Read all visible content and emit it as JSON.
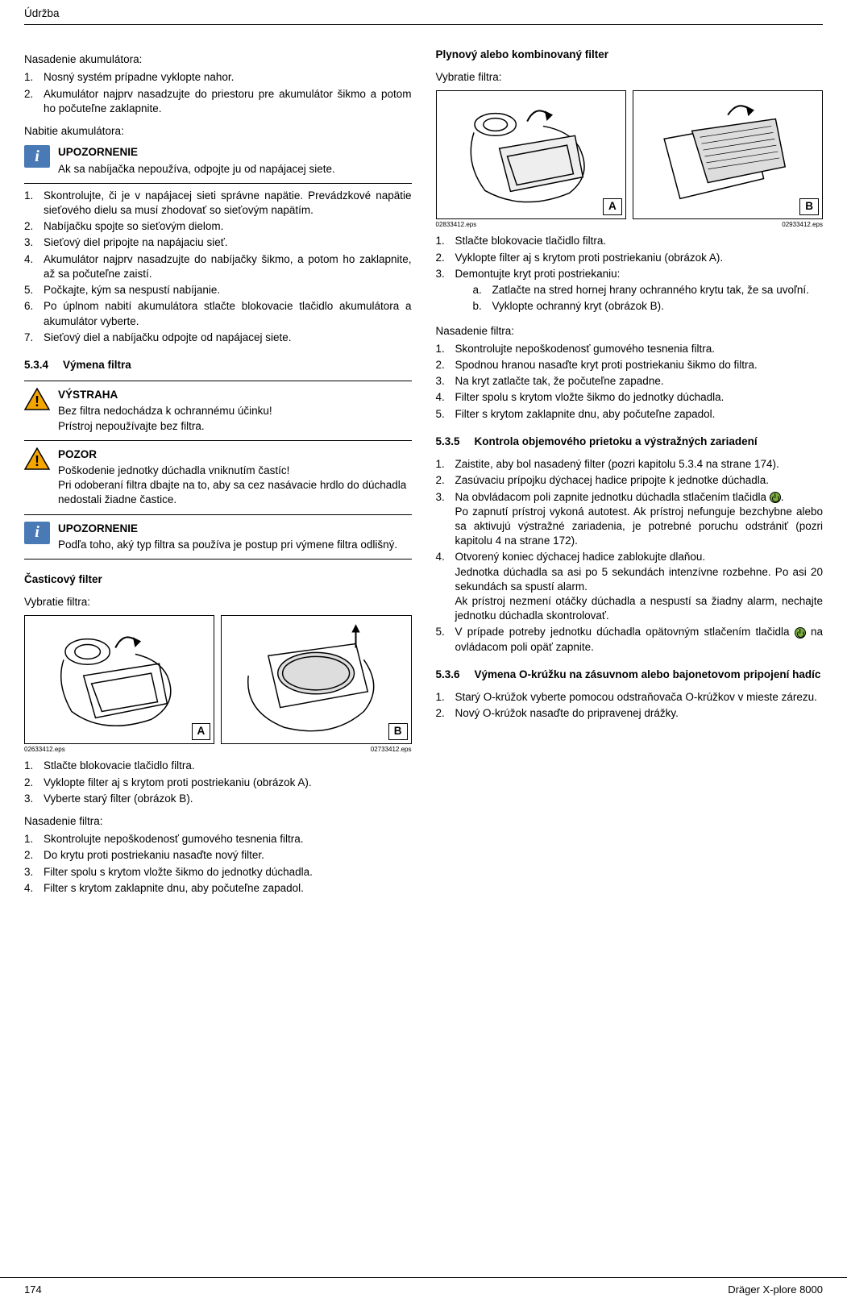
{
  "header": "Údržba",
  "footer": {
    "page": "174",
    "product": "Dräger X-plore 8000"
  },
  "left": {
    "accum_insert_heading": "Nasadenie akumulátora:",
    "accum_insert_items": [
      "Nosný systém prípadne vyklopte nahor.",
      "Akumulátor najprv nasadzujte do priestoru pre akumulátor šikmo a potom ho počuteľne zaklapnite."
    ],
    "accum_charge_heading": "Nabitie akumulátora:",
    "notice1": {
      "title": "UPOZORNENIE",
      "text": "Ak sa nabíjačka nepoužíva, odpojte ju od napájacej siete."
    },
    "accum_charge_items": [
      "Skontrolujte, či je v napájacej sieti správne napätie. Prevádzkové napätie sieťového dielu sa musí zhodovať so sieťovým napätím.",
      "Nabíjačku spojte so sieťovým dielom.",
      "Sieťový diel pripojte na napájaciu sieť.",
      "Akumulátor najprv nasadzujte do nabíjačky šikmo, a potom ho zaklapnite, až sa počuteľne zaistí.",
      "Počkajte, kým sa nespustí nabíjanie.",
      "Po úplnom nabití akumulátora stlačte blokovacie tlačidlo akumulátora a akumulátor vyberte.",
      "Sieťový diel a nabíjačku odpojte od napájacej siete."
    ],
    "sub_534": {
      "num": "5.3.4",
      "title": "Výmena filtra"
    },
    "warn": {
      "title": "VÝSTRAHA",
      "line1": "Bez filtra nedochádza k ochrannému účinku!",
      "line2": "Prístroj nepoužívajte bez filtra."
    },
    "caution": {
      "title": "POZOR",
      "line1": "Poškodenie jednotky dúchadla vniknutím častíc!",
      "line2": "Pri odoberaní filtra dbajte na to, aby sa cez nasávacie hrdlo do dúchadla nedostali žiadne častice."
    },
    "notice2": {
      "title": "UPOZORNENIE",
      "text": "Podľa toho, aký typ filtra sa používa je postup pri výmene filtra odlišný."
    },
    "particle_heading": "Časticový filter",
    "remove_heading": "Vybratie filtra:",
    "fig_caps_left": [
      "02633412.eps",
      "02733412.eps"
    ],
    "remove_items": [
      "Stlačte blokovacie tlačidlo filtra.",
      "Vyklopte filter aj s krytom proti postriekaniu (obrázok A).",
      "Vyberte starý filter (obrázok B)."
    ],
    "insert_heading": "Nasadenie filtra:",
    "insert_items": [
      "Skontrolujte nepoškodenosť gumového tesnenia filtra.",
      "Do krytu proti postriekaniu nasaďte nový filter.",
      "Filter spolu s krytom vložte šikmo do jednotky dúchadla.",
      "Filter s krytom zaklapnite dnu, aby počuteľne zapadol."
    ]
  },
  "right": {
    "gas_heading": "Plynový alebo kombinovaný filter",
    "remove_heading": "Vybratie filtra:",
    "fig_caps_right": [
      "02833412.eps",
      "02933412.eps"
    ],
    "remove_items": [
      {
        "t": "Stlačte blokovacie tlačidlo filtra."
      },
      {
        "t": "Vyklopte filter aj s krytom proti postriekaniu (obrázok A)."
      },
      {
        "t": "Demontujte kryt proti postriekaniu:",
        "sub": [
          "Zatlačte na stred hornej hrany ochranného krytu tak, že sa uvoľní.",
          "Vyklopte ochranný kryt (obrázok B)."
        ]
      }
    ],
    "insert_heading": "Nasadenie filtra:",
    "insert_items": [
      "Skontrolujte nepoškodenosť gumového tesnenia filtra.",
      "Spodnou hranou nasaďte kryt proti postriekaniu šikmo do filtra.",
      "Na kryt zatlačte tak, že počuteľne zapadne.",
      "Filter spolu s krytom vložte šikmo do jednotky dúchadla.",
      "Filter s krytom zaklapnite dnu, aby počuteľne zapadol."
    ],
    "sub_535": {
      "num": "5.3.5",
      "title": "Kontrola objemového prietoku a výstražných zariadení"
    },
    "flow_items": [
      "Zaistite, aby bol nasadený filter (pozri kapitolu 5.3.4 na strane 174).",
      "Zasúvaciu prípojku dýchacej hadice pripojte k jednotke dúchadla.",
      "Na obvládacom poli zapnite jednotku dúchadla stlačením tlačidla [PWR].\nPo zapnutí prístroj vykoná autotest. Ak prístroj nefunguje bezchybne alebo sa aktivujú výstražné zariadenia, je potrebné poruchu odstrániť (pozri kapitolu 4 na strane 172).",
      "Otvorený koniec dýchacej hadice zablokujte dlaňou.\nJednotka dúchadla sa asi po 5 sekundách intenzívne rozbehne. Po asi 20 sekundách sa spustí alarm.\nAk prístroj nezmení otáčky dúchadla a nespustí sa žiadny alarm, nechajte jednotku dúchadla skontrolovať.",
      "V prípade potreby jednotku dúchadla opätovným stlačením tlačidla [PWR] na ovládacom poli opäť zapnite."
    ],
    "sub_536": {
      "num": "5.3.6",
      "title": "Výmena O-krúžku na zásuvnom alebo bajonetovom pripojení hadíc"
    },
    "oring_items": [
      "Starý O-krúžok vyberte pomocou odstraňovača O-krúžkov v mieste zárezu.",
      "Nový O-krúžok nasaďte do pripravenej drážky."
    ]
  }
}
